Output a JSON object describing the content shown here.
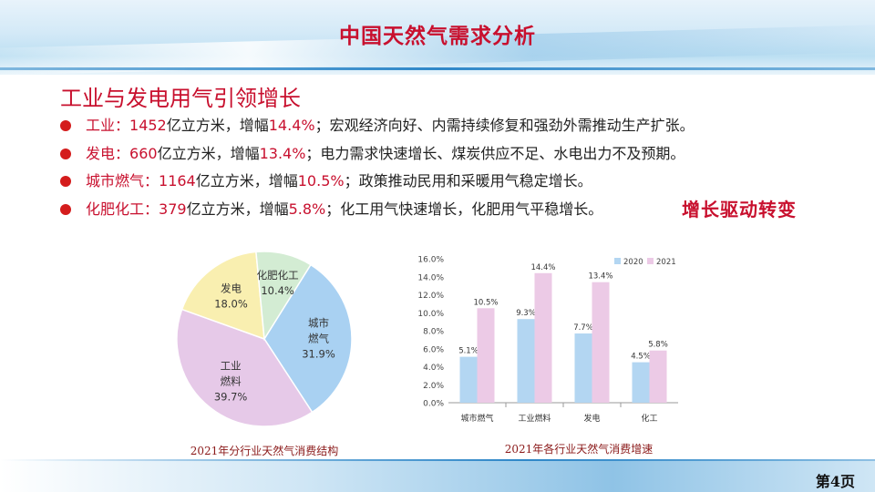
{
  "header": {
    "title": "中国天然气需求分析"
  },
  "section": {
    "subtitle": "工业与发电用气引领增长"
  },
  "bullets": [
    {
      "label": "工业：",
      "value": "1452",
      "unit": "亿立方米，增幅",
      "growth": "14.4%",
      "rest": "；宏观经济向好、内需持续修复和强劲外需推动生产扩张。"
    },
    {
      "label": "发电：",
      "value": "660",
      "unit": "亿立方米，增幅",
      "growth": "13.4%",
      "rest": "；电力需求快速增长、煤炭供应不足、水电出力不及预期。"
    },
    {
      "label": "城市燃气：",
      "value": "1164",
      "unit": "亿立方米，增幅",
      "growth": "10.5%",
      "rest": "；政策推动民用和采暖用气稳定增长。"
    },
    {
      "label": "化肥化工：",
      "value": "379",
      "unit": "亿立方米，增幅",
      "growth": "5.8%",
      "rest": "；化工用气快速增长，化肥用气平稳增长。"
    }
  ],
  "stamp": {
    "text": "增长驱动转变"
  },
  "footer": {
    "page": "第4页"
  },
  "colors": {
    "title_red": "#c8102e",
    "pie_city": "#a9d1f2",
    "pie_industry": "#e6c9e8",
    "pie_power": "#f9efb0",
    "pie_chem": "#d3ecd3",
    "bar_2020": "#b3d6f2",
    "bar_2021": "#eccae6"
  },
  "chart_data": [
    {
      "type": "pie",
      "caption": "2021年分行业天然气消费结构",
      "slices": [
        {
          "name_lines": [
            "城市",
            "燃气"
          ],
          "value": 31.9,
          "label": "31.9%",
          "color": "#a9d1f2"
        },
        {
          "name_lines": [
            "工业",
            "燃料"
          ],
          "value": 39.7,
          "label": "39.7%",
          "color": "#e6c9e8"
        },
        {
          "name_lines": [
            "发电"
          ],
          "value": 18.0,
          "label": "18.0%",
          "color": "#f9efb0"
        },
        {
          "name_lines": [
            "化肥化工"
          ],
          "value": 10.4,
          "label": "10.4%",
          "color": "#d3ecd3"
        }
      ]
    },
    {
      "type": "bar",
      "caption": "2021年各行业天然气消费增速",
      "categories": [
        "城市燃气",
        "工业燃料",
        "发电",
        "化工"
      ],
      "series": [
        {
          "name": "2020",
          "values": [
            5.1,
            9.3,
            7.7,
            4.5
          ],
          "labels": [
            "5.1%",
            "9.3%",
            "7.7%",
            "4.5%"
          ],
          "color": "#b3d6f2"
        },
        {
          "name": "2021",
          "values": [
            10.5,
            14.4,
            13.4,
            5.8
          ],
          "labels": [
            "10.5%",
            "14.4%",
            "13.4%",
            "5.8%"
          ],
          "color": "#eccae6"
        }
      ],
      "ylim": [
        0,
        16
      ],
      "yticks": [
        "0.0%",
        "2.0%",
        "4.0%",
        "6.0%",
        "8.0%",
        "10.0%",
        "12.0%",
        "14.0%",
        "16.0%"
      ],
      "legend": "top-right",
      "grid": false
    }
  ]
}
